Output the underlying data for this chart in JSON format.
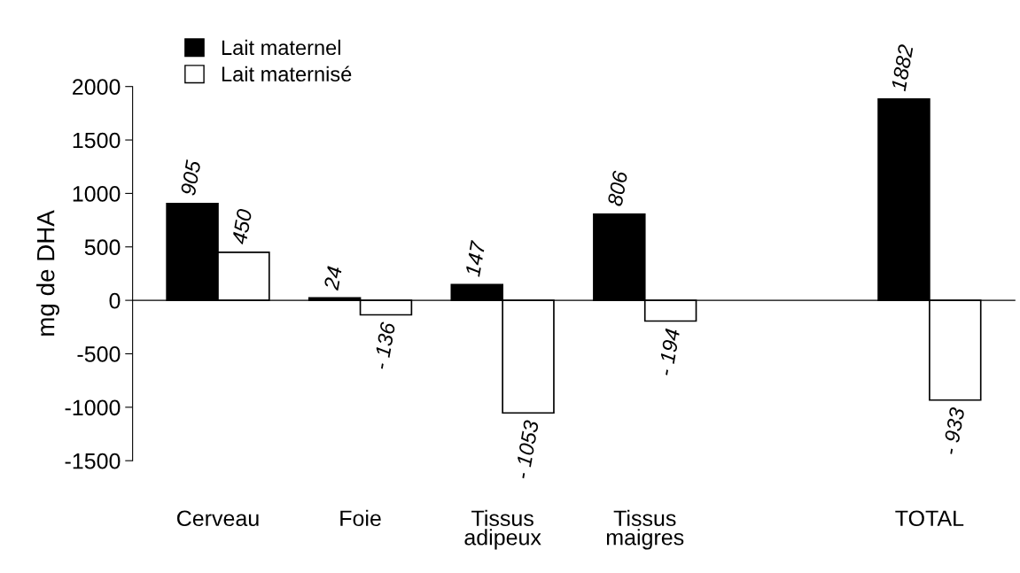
{
  "chart_data": {
    "type": "bar",
    "categories": [
      "Cerveau",
      "Foie",
      "Tissus\nadipeux",
      "Tissus\nmaigres",
      null,
      "TOTAL"
    ],
    "series": [
      {
        "name": "Lait maternel",
        "color": "#000000",
        "values": [
          905,
          24,
          147,
          806,
          null,
          1882
        ],
        "value_labels": [
          "905",
          "24",
          "147",
          "806",
          null,
          "1882"
        ]
      },
      {
        "name": "Lait maternisé",
        "color": "#ffffff",
        "values": [
          450,
          -136,
          -1053,
          -194,
          null,
          -933
        ],
        "value_labels": [
          "450",
          "- 136",
          "- 1053",
          "- 194",
          null,
          "- 933"
        ]
      }
    ],
    "ylabel": "mg de DHA",
    "ylim": [
      -1500,
      2000
    ],
    "yticks": [
      -1500,
      -1000,
      -500,
      0,
      500,
      1000,
      1500,
      2000
    ],
    "legend": "top left"
  }
}
